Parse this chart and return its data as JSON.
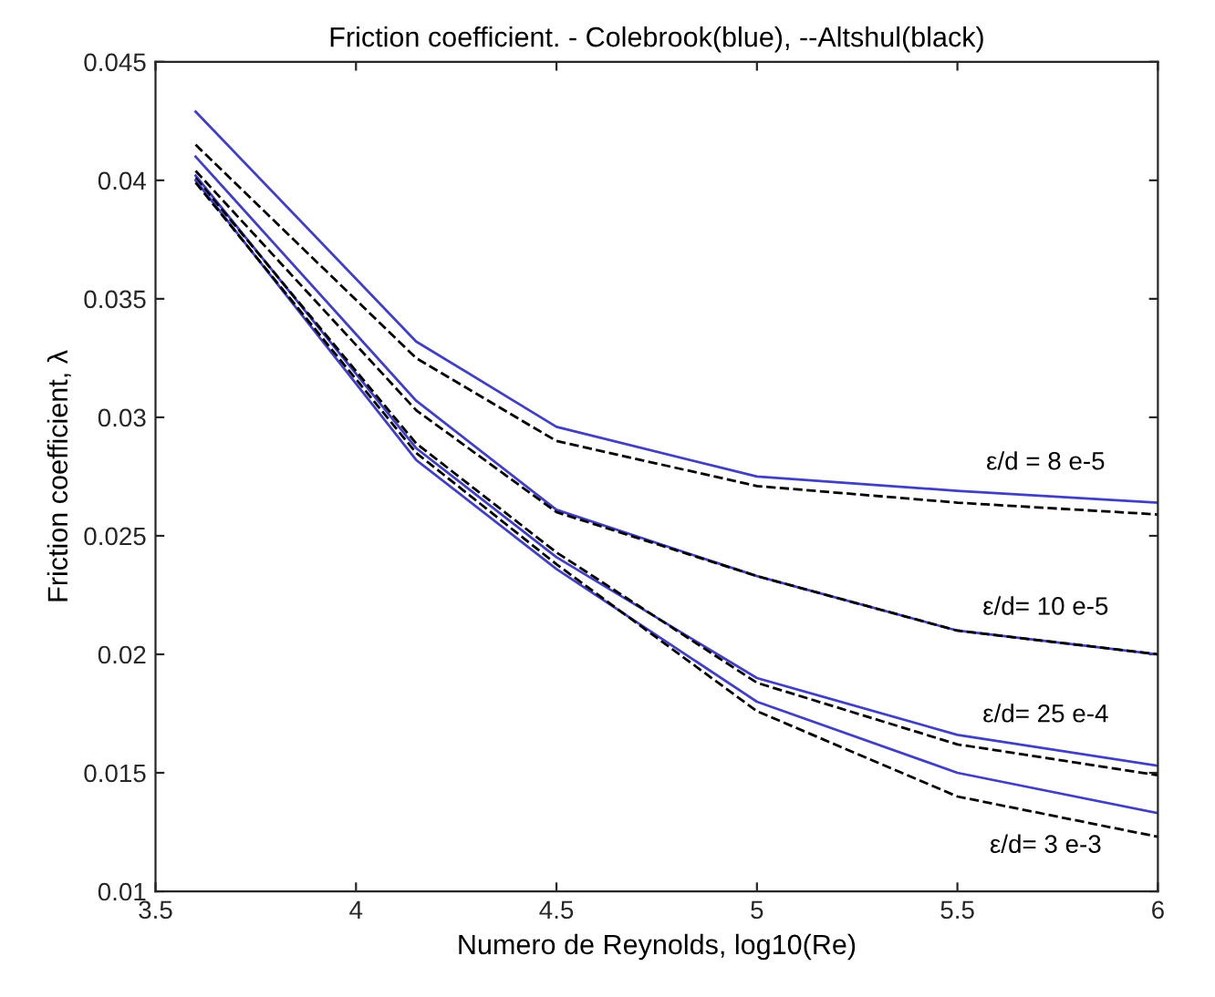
{
  "chart_data": {
    "type": "line",
    "title": "Friction coefficient. - Colebrook(blue), --Altshul(black)",
    "xlabel": "Numero de Reynolds, log10(Re)",
    "ylabel": "Friction coefficient, λ",
    "x": [
      3.6,
      4.15,
      4.5,
      5,
      5.5,
      6
    ],
    "series": [
      {
        "name": "ε/d = 8 e-5",
        "color": "#4040c0",
        "line_style": "solid",
        "values": [
          0.0429,
          0.0332,
          0.0296,
          0.0275,
          0.0269,
          0.0264
        ]
      },
      {
        "color": "#000000",
        "line_style": "dashed",
        "values": [
          0.0415,
          0.0325,
          0.029,
          0.0271,
          0.0264,
          0.0259
        ]
      },
      {
        "name": "ε/d= 10 e-5",
        "color": "#4040c0",
        "line_style": "solid",
        "values": [
          0.041,
          0.0307,
          0.0261,
          0.0233,
          0.021,
          0.02
        ]
      },
      {
        "color": "#000000",
        "line_style": "dashed",
        "values": [
          0.0404,
          0.0303,
          0.026,
          0.0233,
          0.021,
          0.02
        ]
      },
      {
        "name": "ε/d= 25 e-4",
        "color": "#4040c0",
        "line_style": "solid",
        "values": [
          0.0402,
          0.0287,
          0.0241,
          0.019,
          0.0166,
          0.0153
        ]
      },
      {
        "color": "#000000",
        "line_style": "dashed",
        "values": [
          0.0401,
          0.0289,
          0.0243,
          0.0188,
          0.0162,
          0.0149
        ]
      },
      {
        "name": "ε/d= 3 e-3",
        "color": "#4040c0",
        "line_style": "solid",
        "values": [
          0.04,
          0.0282,
          0.0236,
          0.018,
          0.015,
          0.0133
        ]
      },
      {
        "color": "#000000",
        "line_style": "dashed",
        "values": [
          0.0399,
          0.0285,
          0.0238,
          0.0176,
          0.014,
          0.0123
        ]
      }
    ],
    "xlim": [
      3.5,
      6
    ],
    "ylim": [
      0.01,
      0.045
    ],
    "xticks": [
      3.5,
      4,
      4.5,
      5,
      5.5,
      6
    ],
    "yticks": [
      0.01,
      0.015,
      0.02,
      0.025,
      0.03,
      0.035,
      0.04,
      0.045
    ],
    "grid": false,
    "legend": false,
    "marker": "none"
  }
}
